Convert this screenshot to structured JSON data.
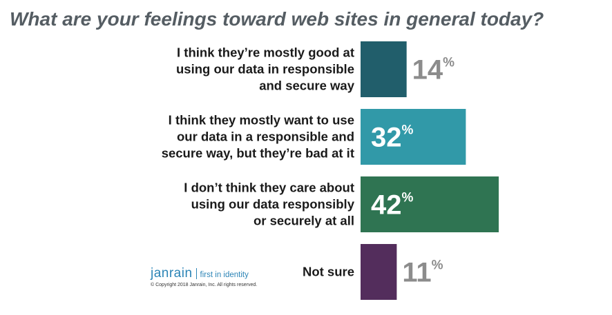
{
  "title": "What are your feelings toward web sites in general today?",
  "chart_data": {
    "type": "bar",
    "orientation": "horizontal",
    "categories": [
      [
        "I think they’re mostly good at",
        "using our data in responsible",
        "and secure way"
      ],
      [
        "I think they mostly want to use",
        "our data in a responsible and",
        "secure way, but they’re bad at it"
      ],
      [
        "I don’t think they care about",
        "using our data responsibly",
        "or securely at all"
      ],
      [
        "Not sure"
      ]
    ],
    "values": [
      14,
      32,
      42,
      11
    ],
    "value_labels": [
      "14",
      "32",
      "42",
      "11"
    ],
    "unit": "%",
    "bar_colors": [
      "#215e6b",
      "#3199a8",
      "#2f7452",
      "#532d5c"
    ],
    "xlim": [
      0,
      42
    ]
  },
  "logo": {
    "brand": "janrain",
    "tagline": "first in identity",
    "copyright": "© Copyright 2018 Janrain, Inc. All rights reserved."
  }
}
